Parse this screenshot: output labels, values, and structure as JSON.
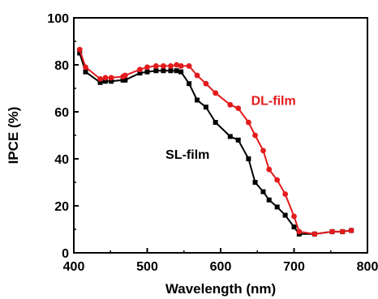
{
  "chart_data": {
    "type": "line",
    "xlabel": "Wavelength (nm)",
    "ylabel": "IPCE (%)",
    "xlim": [
      400,
      800
    ],
    "ylim": [
      0,
      100
    ],
    "xticks": [
      400,
      500,
      600,
      700,
      800
    ],
    "yticks": [
      0,
      20,
      40,
      60,
      80,
      100
    ],
    "grid": false,
    "legend": "none",
    "series": [
      {
        "name": "SL-film",
        "color": "#000000",
        "marker": "square",
        "x": [
          408,
          416,
          436,
          443,
          451,
          467,
          470,
          490,
          500,
          512,
          522,
          532,
          540,
          546,
          557,
          568,
          580,
          593,
          613,
          624,
          638,
          647,
          658,
          666,
          677,
          688,
          700,
          707,
          728,
          752,
          766,
          778
        ],
        "y": [
          85,
          77,
          72.5,
          73,
          73,
          73.5,
          73.5,
          76.5,
          77,
          77.5,
          77.5,
          77.5,
          77.5,
          77,
          72,
          65,
          62,
          55.5,
          49.5,
          48,
          40,
          30,
          26,
          22.5,
          19.5,
          16,
          11,
          8,
          8,
          9,
          9,
          9.5
        ]
      },
      {
        "name": "DL-film",
        "color": "#e31a1c",
        "marker": "circle",
        "x": [
          408,
          416,
          436,
          443,
          451,
          467,
          470,
          490,
          500,
          512,
          522,
          532,
          540,
          546,
          557,
          568,
          580,
          593,
          613,
          624,
          638,
          647,
          658,
          666,
          677,
          688,
          700,
          707,
          728,
          752,
          766,
          778
        ],
        "y": [
          86.5,
          79,
          74,
          74.5,
          74.5,
          75,
          75.5,
          78,
          79,
          79.5,
          79.5,
          79.5,
          80,
          79.5,
          79.5,
          75.5,
          72,
          68,
          63,
          61.5,
          55.5,
          50,
          43.5,
          35.5,
          31,
          25,
          15.5,
          9,
          8,
          9,
          9,
          9.5
        ]
      }
    ],
    "annotations": [
      {
        "text": "DL-film",
        "color": "#e31a1c",
        "x": 672,
        "y": 63
      },
      {
        "text": "SL-film",
        "color": "#000000",
        "x": 555,
        "y": 40
      }
    ]
  }
}
